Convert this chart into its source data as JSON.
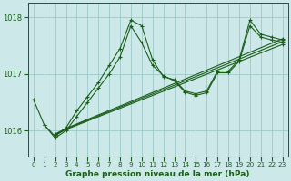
{
  "title": "Graphe pression niveau de la mer (hPa)",
  "bg_color": "#cde8e8",
  "grid_color": "#9dc8c8",
  "line_color": "#1a5e1a",
  "xlim": [
    -0.5,
    23.5
  ],
  "ylim": [
    1015.55,
    1018.25
  ],
  "yticks": [
    1016,
    1017,
    1018
  ],
  "xticks": [
    0,
    1,
    2,
    3,
    4,
    5,
    6,
    7,
    8,
    9,
    10,
    11,
    12,
    13,
    14,
    15,
    16,
    17,
    18,
    19,
    20,
    21,
    22,
    23
  ],
  "series": [
    {
      "x": [
        0,
        1,
        2,
        3,
        4,
        5,
        6,
        7,
        8,
        9,
        10,
        11,
        12,
        13,
        14,
        15,
        16,
        17,
        18,
        19,
        20,
        21,
        22,
        23
      ],
      "y": [
        1016.55,
        1016.1,
        1015.9,
        1016.05,
        1016.35,
        1016.6,
        1016.85,
        1017.15,
        1017.45,
        1017.95,
        1017.85,
        1017.25,
        1016.95,
        1016.9,
        1016.7,
        1016.65,
        1016.7,
        1017.05,
        1017.05,
        1017.25,
        1017.95,
        1017.7,
        1017.65,
        1017.6
      ]
    },
    {
      "x": [
        1,
        2,
        3,
        4,
        5,
        6,
        7,
        8,
        9,
        10,
        11,
        12,
        13,
        14,
        15,
        16,
        17,
        18,
        19,
        20,
        21,
        22,
        23
      ],
      "y": [
        1016.1,
        1015.87,
        1016.0,
        1016.25,
        1016.5,
        1016.75,
        1017.0,
        1017.3,
        1017.85,
        1017.55,
        1017.15,
        1016.97,
        1016.88,
        1016.68,
        1016.62,
        1016.67,
        1017.02,
        1017.02,
        1017.22,
        1017.85,
        1017.65,
        1017.6,
        1017.56
      ]
    },
    {
      "x": [
        2,
        3,
        23
      ],
      "y": [
        1015.92,
        1016.02,
        1017.52
      ]
    },
    {
      "x": [
        2,
        3,
        23
      ],
      "y": [
        1015.93,
        1016.03,
        1017.57
      ]
    },
    {
      "x": [
        2,
        3,
        23
      ],
      "y": [
        1015.94,
        1016.04,
        1017.62
      ]
    }
  ]
}
